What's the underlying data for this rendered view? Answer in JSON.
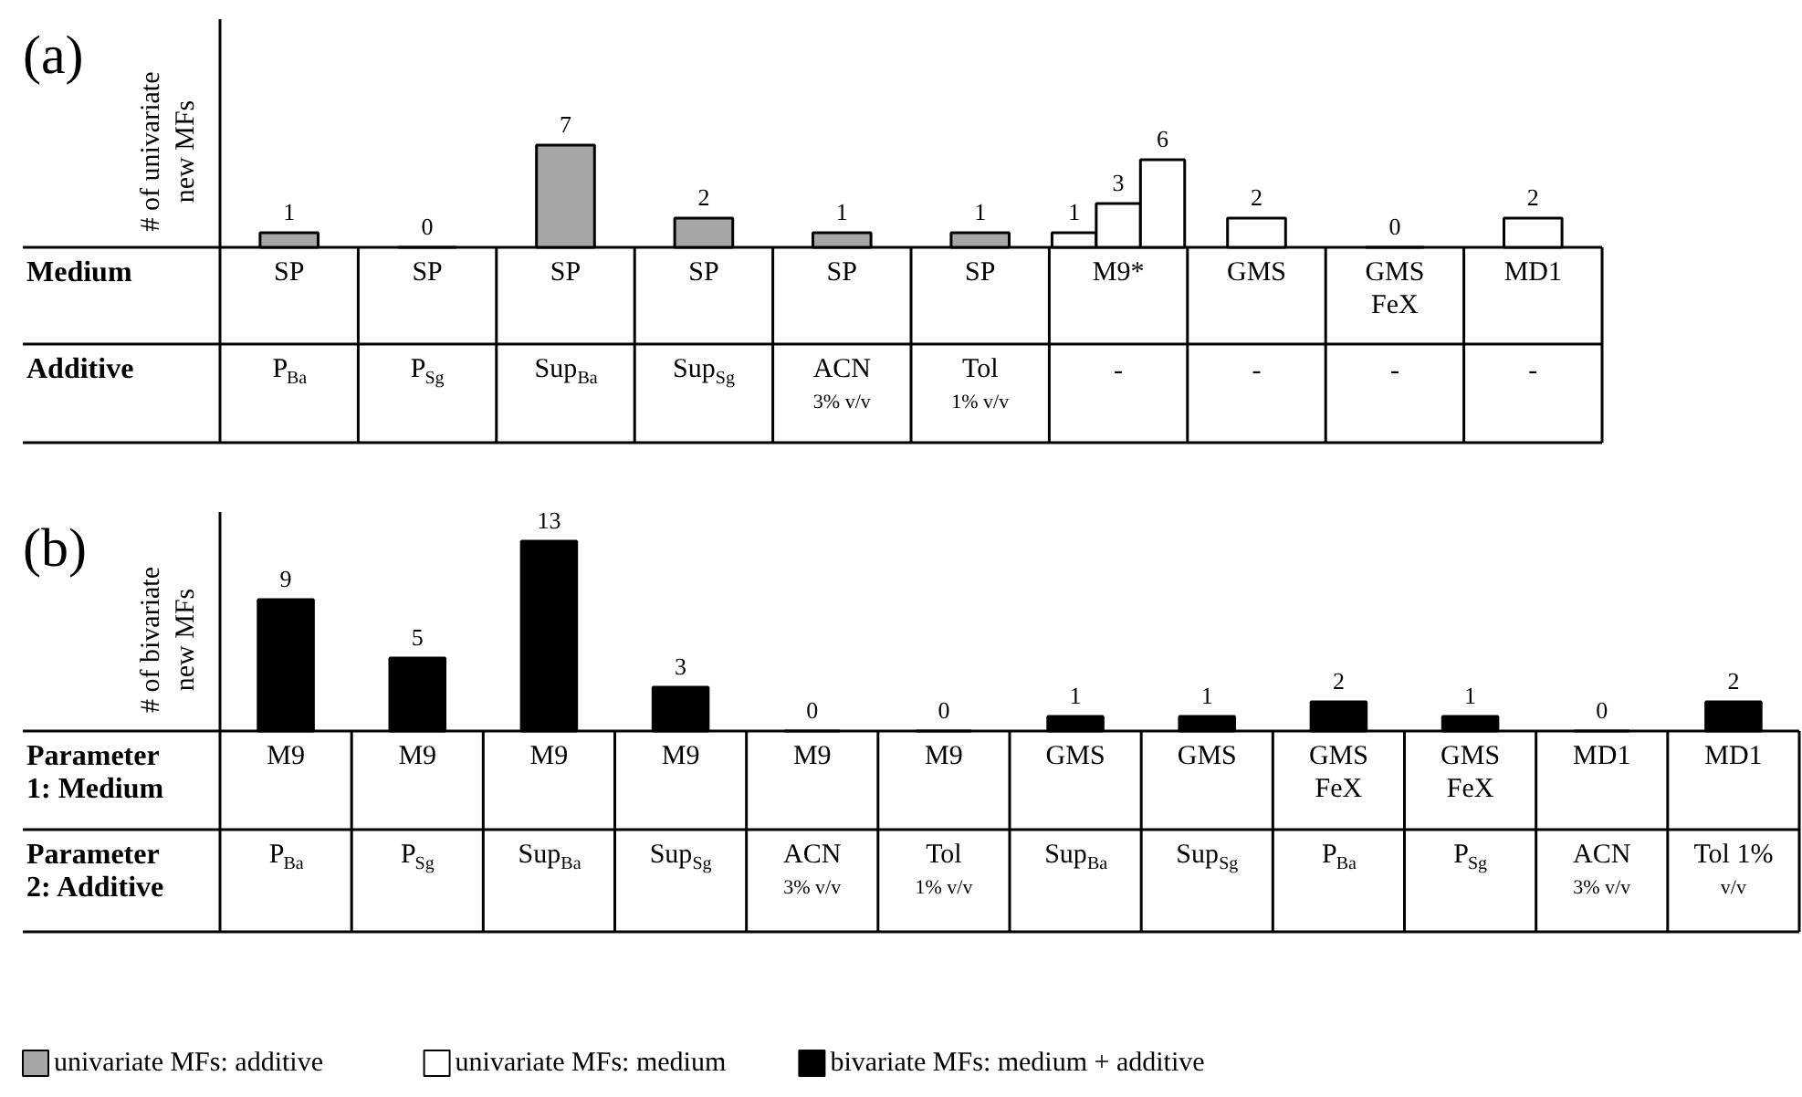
{
  "chart_data": [
    {
      "type": "bar",
      "title": "(a)",
      "ylabel": "# of univariate\nnew MFs",
      "data_labels": true,
      "legend": "bottom",
      "grid": false,
      "categories": [
        "SP",
        "SP",
        "SP",
        "SP",
        "SP",
        "SP",
        "M9*",
        "GMS",
        "GMS\nFeX",
        "MD1"
      ],
      "series": [
        {
          "name": "univariate MFs: additive",
          "color": "#a6a6a6",
          "values": [
            1,
            0,
            7,
            2,
            1,
            1,
            null,
            null,
            null,
            null
          ]
        },
        {
          "name": "univariate MFs: medium",
          "color": "#ffffff",
          "values": [
            null,
            null,
            null,
            null,
            null,
            null,
            1,
            2,
            0,
            2
          ]
        },
        {
          "color": "#ffffff",
          "values": [
            null,
            null,
            null,
            null,
            null,
            null,
            3,
            null,
            null,
            null
          ]
        },
        {
          "color": "#ffffff",
          "values": [
            null,
            null,
            null,
            null,
            null,
            null,
            6,
            null,
            null,
            null
          ]
        }
      ],
      "annotations": [
        "Medium",
        "Additive",
        "P$_{Ba}$",
        "P$_{Sg}$",
        "Sup$_{Ba}$",
        "Sup$_{Sg}$",
        "ACN\n3% v/v",
        "Tol\n1% v/v",
        "-",
        "-",
        "-",
        "-"
      ]
    },
    {
      "type": "bar",
      "title": "(b)",
      "ylabel": "# of bivariate\nnew MFs",
      "data_labels": true,
      "legend": "bottom",
      "grid": false,
      "categories": [
        "M9",
        "M9",
        "M9",
        "M9",
        "M9",
        "M9",
        "GMS",
        "GMS",
        "GMS\nFeX",
        "GMS\nFeX",
        "MD1",
        "MD1"
      ],
      "series": [
        {
          "name": "bivariate MFs: medium + additive",
          "color": "#000000",
          "values": [
            9,
            5,
            13,
            3,
            0,
            0,
            1,
            1,
            2,
            1,
            0,
            2
          ]
        }
      ],
      "annotations": [
        "Parameter\n1: Medium",
        "Parameter\n2: Additive",
        "P$_{Ba}$",
        "P$_{Sg}$",
        "Sup$_{Ba}$",
        "Sup$_{Sg}$",
        "ACN\n3% v/v",
        "Tol\n1% v/v",
        "Sup$_{Ba}$",
        "Sup$_{Sg}$",
        "P$_{Ba}$",
        "P$_{Sg}$",
        "ACN\n3% v/v",
        "Tol 1%\nv/v"
      ]
    }
  ]
}
